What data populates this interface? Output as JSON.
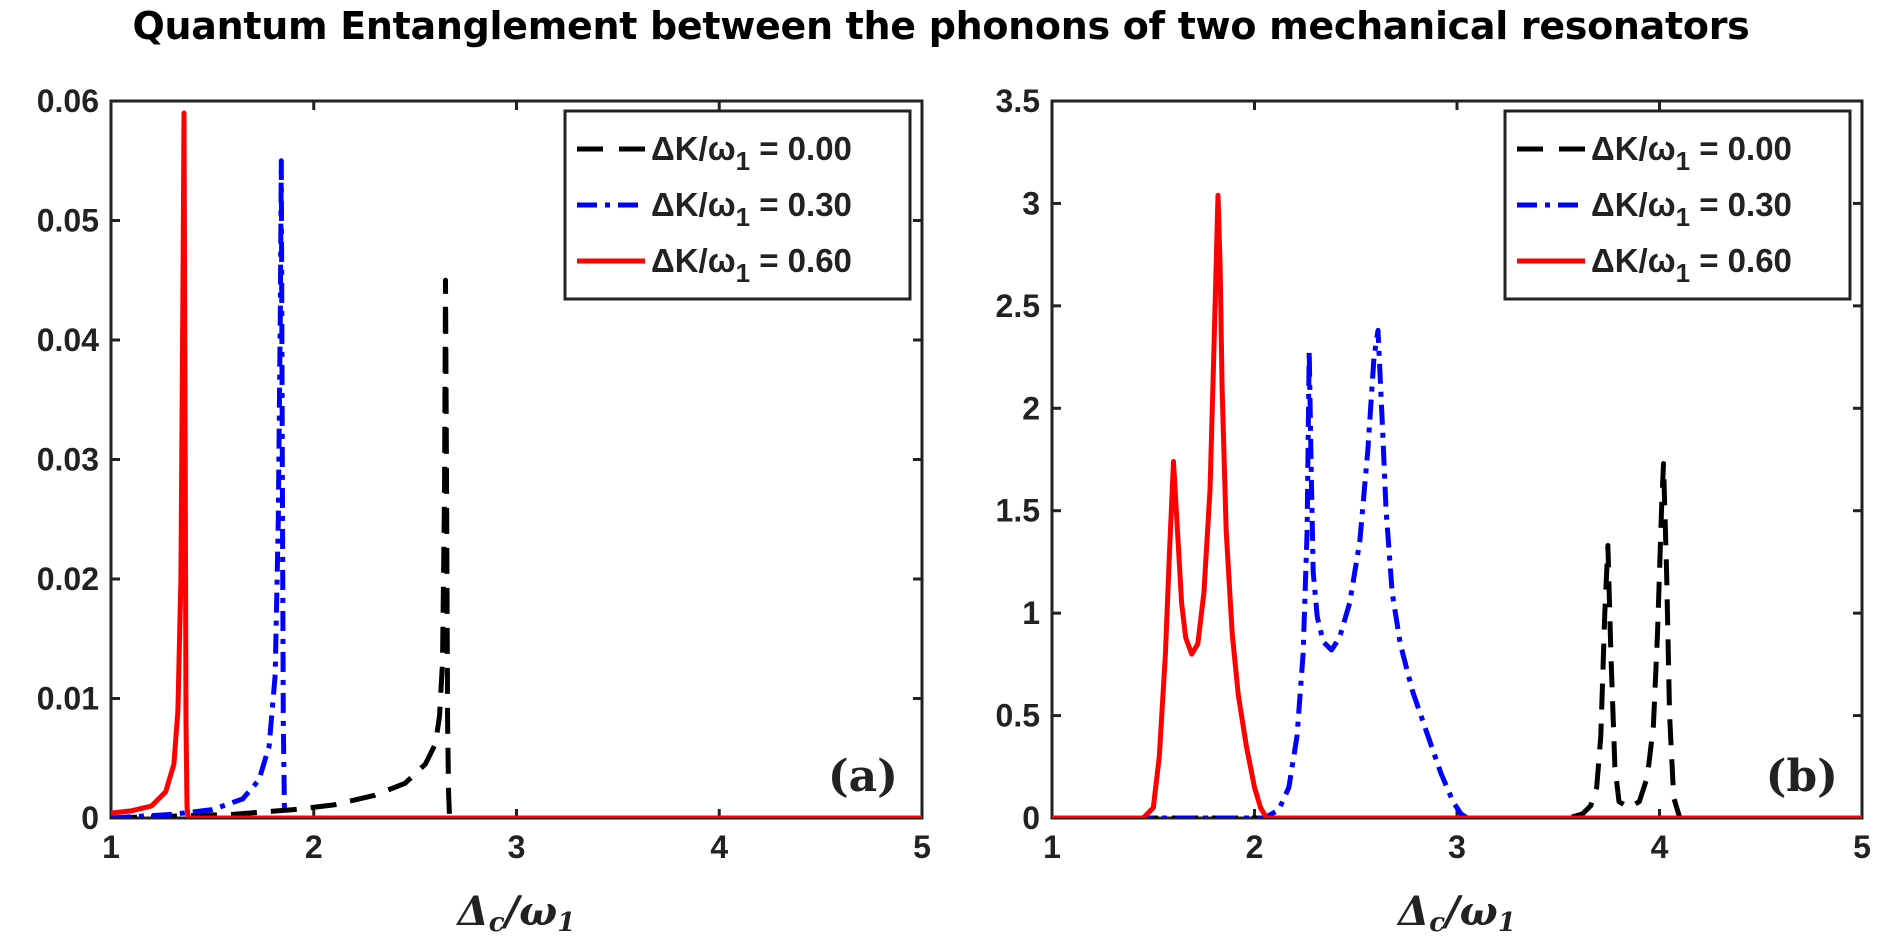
{
  "title": "Quantum Entanglement between the phonons of two mechanical resonators",
  "chart_data": [
    {
      "type": "line",
      "panel_label": "(a)",
      "xlabel": "Δc/ω1",
      "ylabel": "",
      "xlim": [
        1,
        5
      ],
      "ylim": [
        0,
        0.06
      ],
      "xticks": [
        "1",
        "2",
        "3",
        "4",
        "5"
      ],
      "yticks": [
        "0",
        "0.01",
        "0.02",
        "0.03",
        "0.04",
        "0.05",
        "0.06"
      ],
      "legend_position": "top-right",
      "series": [
        {
          "name": "ΔK/ω1 = 0.00",
          "color": "#000000",
          "style": "dashed",
          "x": [
            1.0,
            1.6,
            1.9,
            2.1,
            2.3,
            2.45,
            2.55,
            2.6,
            2.62,
            2.635,
            2.645,
            2.65,
            2.655,
            2.66,
            2.665,
            2.67,
            5.0
          ],
          "y": [
            0.0,
            0.0003,
            0.0007,
            0.0011,
            0.0019,
            0.0029,
            0.0045,
            0.0062,
            0.0085,
            0.013,
            0.027,
            0.045,
            0.027,
            0.008,
            0.002,
            0.0,
            0.0
          ]
        },
        {
          "name": "ΔK/ω1 = 0.30",
          "color": "#0000ff",
          "style": "dashdot",
          "x": [
            1.0,
            1.3,
            1.5,
            1.65,
            1.73,
            1.78,
            1.81,
            1.825,
            1.835,
            1.84,
            1.845,
            1.85,
            1.855,
            1.86,
            5.0
          ],
          "y": [
            0.0,
            0.0003,
            0.0007,
            0.0016,
            0.0032,
            0.006,
            0.012,
            0.025,
            0.042,
            0.055,
            0.03,
            0.008,
            0.001,
            0.0,
            0.0
          ]
        },
        {
          "name": "ΔK/ω1 = 0.60",
          "color": "#ff0000",
          "style": "solid",
          "x": [
            1.0,
            1.1,
            1.2,
            1.27,
            1.31,
            1.33,
            1.345,
            1.355,
            1.36,
            1.365,
            1.37,
            1.375,
            1.38,
            5.0
          ],
          "y": [
            0.0004,
            0.0006,
            0.001,
            0.0022,
            0.0045,
            0.009,
            0.02,
            0.045,
            0.059,
            0.035,
            0.008,
            0.001,
            0.0,
            0.0
          ]
        }
      ]
    },
    {
      "type": "line",
      "panel_label": "(b)",
      "xlabel": "Δc/ω1",
      "ylabel": "",
      "xlim": [
        1,
        5
      ],
      "ylim": [
        0,
        3.5
      ],
      "xticks": [
        "1",
        "2",
        "3",
        "4",
        "5"
      ],
      "yticks": [
        "0",
        "0.5",
        "1",
        "1.5",
        "2",
        "2.5",
        "3",
        "3.5"
      ],
      "legend_position": "top-right",
      "series": [
        {
          "name": "ΔK/ω1 = 0.00",
          "color": "#000000",
          "style": "dashed",
          "x": [
            1.0,
            3.55,
            3.62,
            3.66,
            3.69,
            3.71,
            3.73,
            3.745,
            3.76,
            3.78,
            3.8,
            3.85,
            3.9,
            3.94,
            3.97,
            3.99,
            4.01,
            4.02,
            4.035,
            4.05,
            4.07,
            4.1,
            5.0
          ],
          "y": [
            0.0,
            0.0,
            0.02,
            0.06,
            0.15,
            0.4,
            1.0,
            1.33,
            0.8,
            0.25,
            0.08,
            0.05,
            0.08,
            0.2,
            0.45,
            0.9,
            1.5,
            1.73,
            1.2,
            0.5,
            0.1,
            0.0,
            0.0
          ]
        },
        {
          "name": "ΔK/ω1 = 0.30",
          "color": "#0000ff",
          "style": "dashdot",
          "x": [
            1.0,
            2.05,
            2.12,
            2.17,
            2.21,
            2.24,
            2.26,
            2.27,
            2.28,
            2.29,
            2.31,
            2.34,
            2.38,
            2.42,
            2.47,
            2.52,
            2.56,
            2.59,
            2.61,
            2.63,
            2.65,
            2.68,
            2.72,
            2.78,
            2.85,
            2.92,
            2.98,
            3.02,
            3.05,
            5.0
          ],
          "y": [
            0.0,
            0.0,
            0.04,
            0.15,
            0.4,
            0.8,
            1.4,
            2.28,
            1.7,
            1.2,
            0.98,
            0.86,
            0.82,
            0.88,
            1.05,
            1.35,
            1.8,
            2.25,
            2.38,
            1.95,
            1.5,
            1.1,
            0.85,
            0.62,
            0.42,
            0.22,
            0.08,
            0.02,
            0.0,
            0.0
          ]
        },
        {
          "name": "ΔK/ω1 = 0.60",
          "color": "#ff0000",
          "style": "solid",
          "x": [
            1.0,
            1.45,
            1.5,
            1.53,
            1.56,
            1.58,
            1.6,
            1.62,
            1.64,
            1.66,
            1.69,
            1.72,
            1.75,
            1.78,
            1.8,
            1.82,
            1.83,
            1.84,
            1.86,
            1.89,
            1.92,
            1.96,
            2.0,
            2.03,
            2.06,
            2.08,
            5.0
          ],
          "y": [
            0.0,
            0.0,
            0.05,
            0.3,
            0.8,
            1.3,
            1.74,
            1.4,
            1.05,
            0.88,
            0.8,
            0.85,
            1.1,
            1.6,
            2.3,
            3.04,
            2.7,
            2.1,
            1.4,
            0.9,
            0.6,
            0.35,
            0.15,
            0.05,
            0.0,
            0.0,
            0.0
          ]
        }
      ]
    }
  ]
}
